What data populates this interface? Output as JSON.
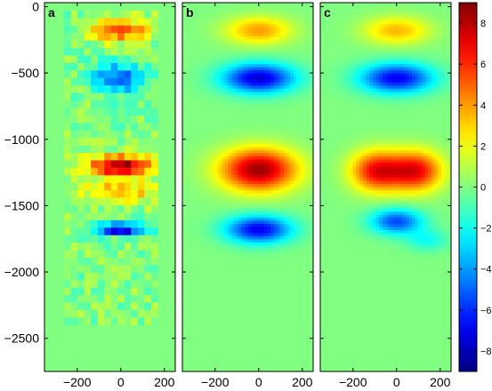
{
  "chart_data": {
    "type": "heatmap",
    "colormap": "jet",
    "color_range": [
      -9,
      9
    ],
    "y_range": [
      -2750,
      30
    ],
    "x_range": [
      -350,
      250
    ],
    "y_ticks": [
      {
        "value": 0,
        "label": "0"
      },
      {
        "value": -500,
        "label": "−500"
      },
      {
        "value": -1000,
        "label": "−1000"
      },
      {
        "value": -1500,
        "label": "−1500"
      },
      {
        "value": -2000,
        "label": "−2000"
      },
      {
        "value": -2500,
        "label": "−2500"
      }
    ],
    "x_ticks": [
      {
        "value": -200,
        "label": "−200"
      },
      {
        "value": 0,
        "label": "0"
      },
      {
        "value": 200,
        "label": "200"
      }
    ],
    "colorbar_ticks": [
      {
        "value": 8,
        "label": "8"
      },
      {
        "value": 6,
        "label": "6"
      },
      {
        "value": 4,
        "label": "4"
      },
      {
        "value": 2,
        "label": "2"
      },
      {
        "value": 0,
        "label": "0"
      },
      {
        "value": -2,
        "label": "−2"
      },
      {
        "value": -4,
        "label": "−4"
      },
      {
        "value": -6,
        "label": "−6"
      },
      {
        "value": -8,
        "label": "−8"
      }
    ],
    "panels": [
      {
        "label": "a",
        "style": "pixelated",
        "blobs": [
          {
            "x": 0,
            "y": -180,
            "rx": 170,
            "ry": 110,
            "amp": 5.5
          },
          {
            "x": -10,
            "y": -540,
            "rx": 150,
            "ry": 150,
            "amp": -5
          },
          {
            "x": 0,
            "y": -1200,
            "rx": 200,
            "ry": 100,
            "amp": 8.5
          },
          {
            "x": -10,
            "y": -1400,
            "rx": 200,
            "ry": 110,
            "amp": 4
          },
          {
            "x": 0,
            "y": -1680,
            "rx": 160,
            "ry": 60,
            "amp": -7.5
          }
        ]
      },
      {
        "label": "b",
        "style": "smooth",
        "blobs": [
          {
            "x": 0,
            "y": -180,
            "rx": 190,
            "ry": 130,
            "amp": 4
          },
          {
            "x": 0,
            "y": -540,
            "rx": 210,
            "ry": 140,
            "amp": -7.5
          },
          {
            "x": 0,
            "y": -1230,
            "rx": 220,
            "ry": 200,
            "amp": 8.5
          },
          {
            "x": 0,
            "y": -1680,
            "rx": 190,
            "ry": 130,
            "amp": -7
          }
        ]
      },
      {
        "label": "c",
        "style": "smooth",
        "blobs": [
          {
            "x": 0,
            "y": -180,
            "rx": 190,
            "ry": 130,
            "amp": 3.5
          },
          {
            "x": 0,
            "y": -540,
            "rx": 210,
            "ry": 140,
            "amp": -7
          },
          {
            "x": -90,
            "y": -1240,
            "rx": 150,
            "ry": 190,
            "amp": 6.8
          },
          {
            "x": 90,
            "y": -1240,
            "rx": 150,
            "ry": 190,
            "amp": 6.8
          },
          {
            "x": 0,
            "y": -1620,
            "rx": 150,
            "ry": 120,
            "amp": -5.5
          },
          {
            "x": 140,
            "y": -1760,
            "rx": 120,
            "ry": 100,
            "amp": -2
          }
        ]
      }
    ]
  }
}
